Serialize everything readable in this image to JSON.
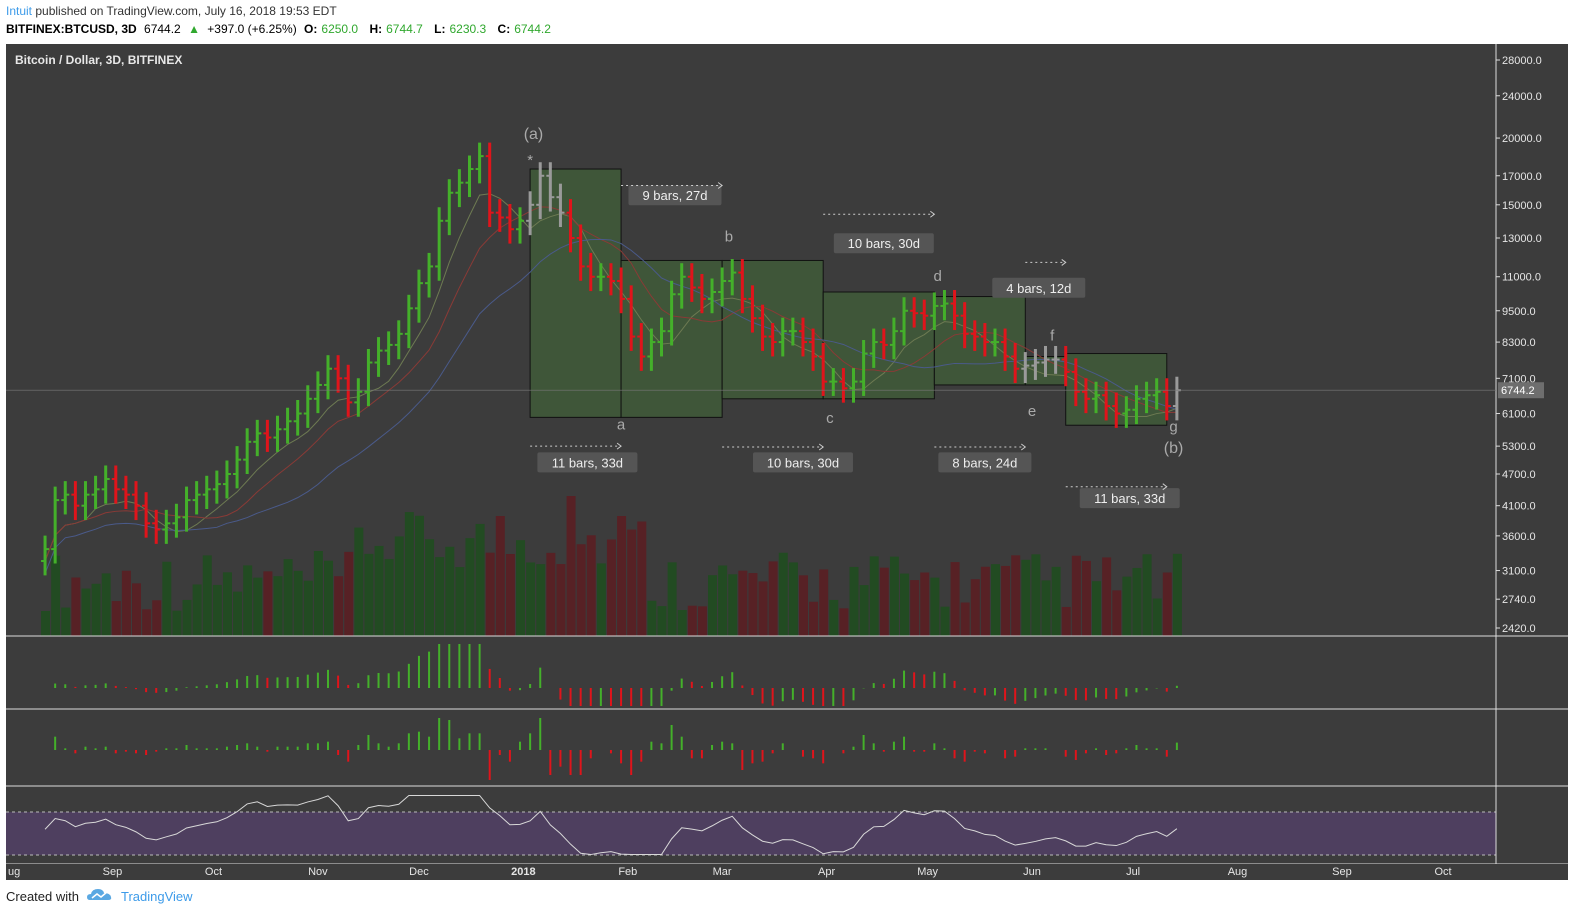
{
  "header": {
    "author": "Intuit",
    "published": "published on TradingView.com, July 16, 2018 19:53 EDT",
    "symbol": "BITFINEX:BTCUSD, 3D",
    "last": "6744.2",
    "change": "+397.0 (+6.25%)",
    "o_label": "O:",
    "o_value": "6250.0",
    "h_label": "H:",
    "h_value": "6744.7",
    "l_label": "L:",
    "l_value": "6230.3",
    "c_label": "C:",
    "c_value": "6744.2"
  },
  "chart_title": "Bitcoin / Dollar, 3D, BITFINEX",
  "footer": {
    "created_with": "Created with",
    "brand": "TradingView"
  },
  "colors": {
    "up": "#44b02a",
    "down": "#e0141b",
    "neutral": "#9a9a9a",
    "box": "#3f5a38",
    "rsi_fill": "#4e3f5f"
  },
  "chart_data": {
    "type": "bar",
    "title": "Bitcoin / Dollar, 3D, BITFINEX",
    "x_ticks": [
      "ug",
      "Sep",
      "Oct",
      "Nov",
      "Dec",
      "2018",
      "Feb",
      "Mar",
      "Apr",
      "May",
      "Jun",
      "Jul",
      "Aug",
      "Sep",
      "Oct"
    ],
    "y_scale": "log",
    "y_ticks": [
      28000,
      24000,
      20000,
      17000,
      15000,
      13000,
      11000,
      9500,
      8300,
      7100,
      6100,
      5300,
      4700,
      4100,
      3600,
      3100,
      2740,
      2420
    ],
    "last_price_label": "6744.2",
    "price_series_x": [
      "2017-08-12",
      "2017-08-15",
      "2017-08-18",
      "2017-08-21",
      "2017-08-24",
      "2017-08-27",
      "2017-08-30",
      "2017-09-02",
      "2017-09-05",
      "2017-09-08",
      "2017-09-11",
      "2017-09-14",
      "2017-09-17",
      "2017-09-20",
      "2017-09-23",
      "2017-09-26",
      "2017-09-29",
      "2017-10-02",
      "2017-10-05",
      "2017-10-08",
      "2017-10-11",
      "2017-10-14",
      "2017-10-17",
      "2017-10-20",
      "2017-10-23",
      "2017-10-26",
      "2017-10-29",
      "2017-11-01",
      "2017-11-04",
      "2017-11-07",
      "2017-11-10",
      "2017-11-13",
      "2017-11-16",
      "2017-11-19",
      "2017-11-22",
      "2017-11-25",
      "2017-11-28",
      "2017-12-01",
      "2017-12-04",
      "2017-12-07",
      "2017-12-10",
      "2017-12-13",
      "2017-12-16",
      "2017-12-19",
      "2017-12-22",
      "2017-12-25",
      "2017-12-28",
      "2017-12-31",
      "2018-01-03",
      "2018-01-06",
      "2018-01-09",
      "2018-01-12",
      "2018-01-15",
      "2018-01-18",
      "2018-01-21",
      "2018-01-24",
      "2018-01-27",
      "2018-01-30",
      "2018-02-02",
      "2018-02-05",
      "2018-02-08",
      "2018-02-11",
      "2018-02-14",
      "2018-02-17",
      "2018-02-20",
      "2018-02-23",
      "2018-02-26",
      "2018-03-01",
      "2018-03-04",
      "2018-03-07",
      "2018-03-10",
      "2018-03-13",
      "2018-03-16",
      "2018-03-19",
      "2018-03-22",
      "2018-03-25",
      "2018-03-28",
      "2018-03-31",
      "2018-04-03",
      "2018-04-06",
      "2018-04-09",
      "2018-04-12",
      "2018-04-15",
      "2018-04-18",
      "2018-04-21",
      "2018-04-24",
      "2018-04-27",
      "2018-04-30",
      "2018-05-03",
      "2018-05-06",
      "2018-05-09",
      "2018-05-12",
      "2018-05-15",
      "2018-05-18",
      "2018-05-21",
      "2018-05-24",
      "2018-05-27",
      "2018-05-30",
      "2018-06-02",
      "2018-06-05",
      "2018-06-08",
      "2018-06-11",
      "2018-06-14",
      "2018-06-17",
      "2018-06-20",
      "2018-06-23",
      "2018-06-26",
      "2018-06-29",
      "2018-07-02",
      "2018-07-05",
      "2018-07-08",
      "2018-07-11",
      "2018-07-14"
    ],
    "price_series_close": [
      3400,
      4200,
      4300,
      4100,
      4300,
      4400,
      4600,
      4400,
      4300,
      4100,
      3800,
      3700,
      3800,
      3900,
      4200,
      4300,
      4400,
      4500,
      4700,
      5000,
      5400,
      5600,
      5500,
      5700,
      5900,
      6100,
      6500,
      6900,
      7400,
      7100,
      6400,
      6700,
      7600,
      8000,
      8200,
      8600,
      9600,
      10700,
      11500,
      14000,
      15800,
      16500,
      17500,
      18500,
      14500,
      14200,
      13500,
      14000,
      15000,
      17000,
      15500,
      14500,
      13000,
      11500,
      11000,
      11000,
      10800,
      10000,
      8500,
      7800,
      8300,
      8700,
      10200,
      11000,
      10500,
      10000,
      10300,
      10800,
      11200,
      10000,
      9200,
      8500,
      8300,
      8700,
      8700,
      8300,
      7800,
      7000,
      7000,
      6800,
      7000,
      7900,
      8300,
      8200,
      8700,
      9500,
      9400,
      9300,
      9700,
      9800,
      9300,
      8600,
      8500,
      8300,
      8300,
      7800,
      7400,
      7500,
      7600,
      7700,
      7700,
      7300,
      6700,
      6500,
      6600,
      6300,
      6100,
      6200,
      6500,
      6600,
      6700,
      6300,
      6744.2
    ],
    "wave_labels": [
      "(a)",
      "*",
      "a",
      "b",
      "c",
      "d",
      "e",
      "f",
      "g",
      "(b)"
    ],
    "duration_labels": [
      "9 bars, 27d",
      "10 bars, 30d",
      "4 bars, 12d",
      "11 bars, 33d",
      "10 bars, 30d",
      "8 bars, 24d",
      "11 bars, 33d"
    ],
    "oscillator_ticks": [
      "0.0000",
      "2000.0000",
      "0.0000",
      "-2000.0000"
    ],
    "rsi_ticks": [
      "80.0000",
      "40.0000"
    ],
    "grid": false
  }
}
